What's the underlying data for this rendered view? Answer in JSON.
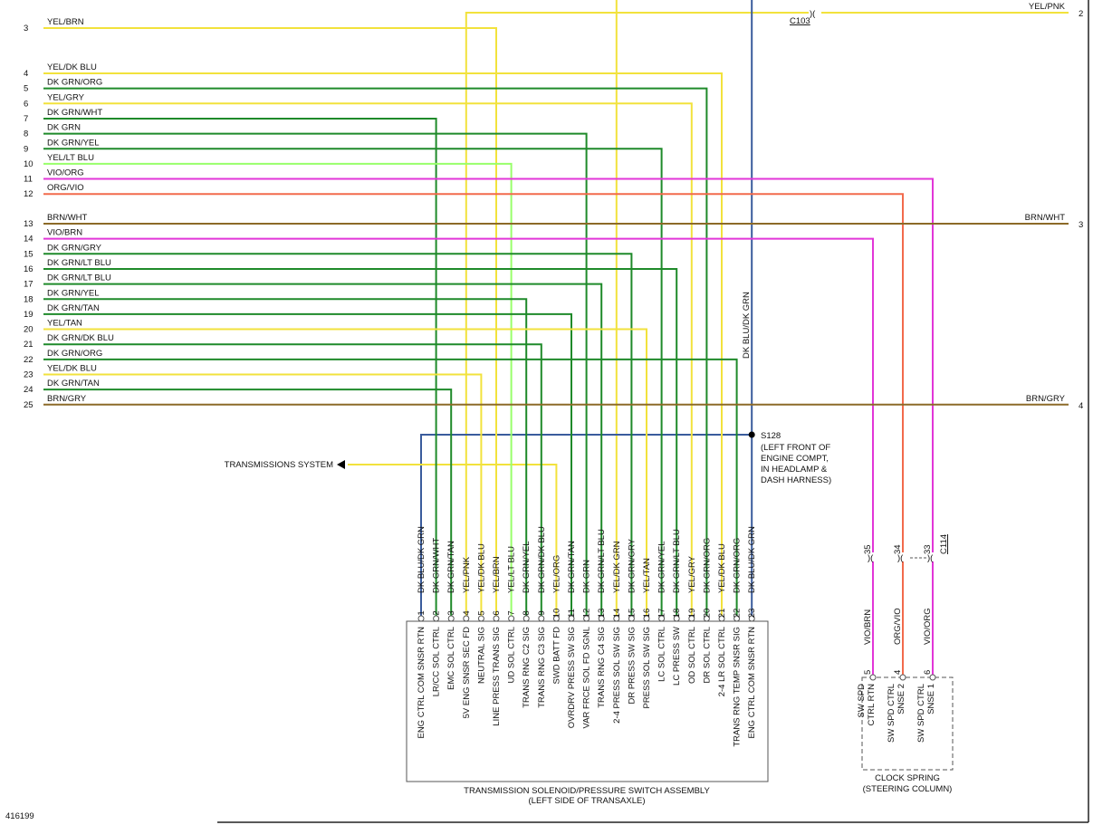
{
  "left_wires": [
    {
      "pin": 3,
      "label": "YEL/BRN"
    },
    {
      "pin": 4,
      "label": "YEL/DK BLU"
    },
    {
      "pin": 5,
      "label": "DK GRN/ORG"
    },
    {
      "pin": 6,
      "label": "YEL/GRY"
    },
    {
      "pin": 7,
      "label": "DK GRN/WHT"
    },
    {
      "pin": 8,
      "label": "DK GRN"
    },
    {
      "pin": 9,
      "label": "DK GRN/YEL"
    },
    {
      "pin": 10,
      "label": "YEL/LT BLU"
    },
    {
      "pin": 11,
      "label": "VIO/ORG"
    },
    {
      "pin": 12,
      "label": "ORG/VIO"
    },
    {
      "pin": 13,
      "label": "BRN/WHT"
    },
    {
      "pin": 14,
      "label": "VIO/BRN"
    },
    {
      "pin": 15,
      "label": "DK GRN/GRY"
    },
    {
      "pin": 16,
      "label": "DK GRN/LT BLU"
    },
    {
      "pin": 17,
      "label": "DK GRN/LT BLU"
    },
    {
      "pin": 18,
      "label": "DK GRN/YEL"
    },
    {
      "pin": 19,
      "label": "DK GRN/TAN"
    },
    {
      "pin": 20,
      "label": "YEL/TAN"
    },
    {
      "pin": 21,
      "label": "DK GRN/DK BLU"
    },
    {
      "pin": 22,
      "label": "DK GRN/ORG"
    },
    {
      "pin": 23,
      "label": "YEL/DK BLU"
    },
    {
      "pin": 24,
      "label": "DK GRN/TAN"
    },
    {
      "pin": 25,
      "label": "BRN/GRY"
    }
  ],
  "right_terminals": [
    {
      "pin": 2,
      "label": "YEL/PNK"
    },
    {
      "pin": 3,
      "label": "BRN/WHT"
    },
    {
      "pin": 4,
      "label": "BRN/GRY"
    }
  ],
  "connector_c103": "C103",
  "vertical_wire_label": "DK BLU/DK GRN",
  "splice": {
    "id": "S128",
    "note": [
      "(LEFT FRONT OF",
      "ENGINE COMPT,",
      "IN HEADLAMP &",
      "DASH HARNESS)"
    ]
  },
  "arrow_label": "TRANSMISSIONS SYSTEM",
  "assembly": {
    "title": [
      "TRANSMISSION SOLENOID/PRESSURE SWITCH ASSEMBLY",
      "(LEFT SIDE OF TRANSAXLE)"
    ],
    "pins": [
      {
        "pin": 1,
        "wire": "DK BLU/DK GRN",
        "function": "ENG CTRL COM SNSR RTN"
      },
      {
        "pin": 2,
        "wire": "DK GRN/WHT",
        "function": "LR/CC SOL CTRL"
      },
      {
        "pin": 3,
        "wire": "DK GRN/TAN",
        "function": "EMC SOL CTRL"
      },
      {
        "pin": 4,
        "wire": "YEL/PNK",
        "function": "5V ENG SNSR SEC FD"
      },
      {
        "pin": 5,
        "wire": "YEL/DK BLU",
        "function": "NEUTRAL SIG"
      },
      {
        "pin": 6,
        "wire": "YEL/BRN",
        "function": "LINE PRESS TRANS SIG"
      },
      {
        "pin": 7,
        "wire": "YEL/LT BLU",
        "function": "UD SOL CTRL"
      },
      {
        "pin": 8,
        "wire": "DK GRN/YEL",
        "function": "TRANS RNG C2 SIG"
      },
      {
        "pin": 9,
        "wire": "DK GRN/DK BLU",
        "function": "TRANS RNG C3 SIG"
      },
      {
        "pin": 10,
        "wire": "YEL/ORG",
        "function": "SWD BATT FD"
      },
      {
        "pin": 11,
        "wire": "DK GRN/TAN",
        "function": "OVRDRV PRESS SW SIG"
      },
      {
        "pin": 12,
        "wire": "DK GRN",
        "function": "VAR FRCE SOL FD SGNL"
      },
      {
        "pin": 13,
        "wire": "DK GRN/LT BLU",
        "function": "TRANS RNG C4 SIG"
      },
      {
        "pin": 14,
        "wire": "YEL/DK GRN",
        "function": "2-4 PRESS SOL SW SIG"
      },
      {
        "pin": 15,
        "wire": "DK GRN/GRY",
        "function": "DR PRESS SW SIG"
      },
      {
        "pin": 16,
        "wire": "YEL/TAN",
        "function": "PRESS SOL SW SIG"
      },
      {
        "pin": 17,
        "wire": "DK GRN/YEL",
        "function": "LC SOL CTRL"
      },
      {
        "pin": 18,
        "wire": "DK GRN/LT BLU",
        "function": "LC PRESS SW"
      },
      {
        "pin": 19,
        "wire": "YEL/GRY",
        "function": "OD SOL CTRL"
      },
      {
        "pin": 20,
        "wire": "DK GRN/ORG",
        "function": "DR SOL CTRL"
      },
      {
        "pin": 21,
        "wire": "YEL/DK BLU",
        "function": "2-4 LR SOL CTRL"
      },
      {
        "pin": 22,
        "wire": "DK GRN/ORG",
        "function": "TRANS RNG TEMP SNSR SIG"
      },
      {
        "pin": 23,
        "wire": "DK BLU/DK GRN",
        "function": "ENG CTRL COM SNSR RTN"
      }
    ]
  },
  "clock_spring": {
    "connector": "C114",
    "title": [
      "CLOCK SPRING",
      "(STEERING COLUMN)"
    ],
    "pins": [
      {
        "conn_pin": 35,
        "wire": "VIO/BRN",
        "pin": 5,
        "function": [
          "SW SPD",
          "CTRL RTN"
        ]
      },
      {
        "conn_pin": 34,
        "wire": "ORG/VIO",
        "pin": 4,
        "function": [
          "SW SPD CTRL",
          "SNSE 2"
        ]
      },
      {
        "conn_pin": 33,
        "wire": "VIO/ORG",
        "pin": 6,
        "function": [
          "SW SPD CTRL",
          "SNSE 1"
        ]
      }
    ]
  },
  "figure_id": "416199"
}
